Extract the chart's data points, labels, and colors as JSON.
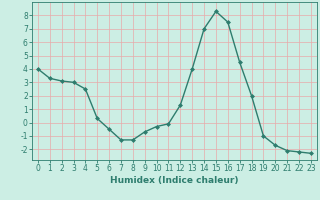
{
  "x": [
    0,
    1,
    2,
    3,
    4,
    5,
    6,
    7,
    8,
    9,
    10,
    11,
    12,
    13,
    14,
    15,
    16,
    17,
    18,
    19,
    20,
    21,
    22,
    23
  ],
  "y": [
    4.0,
    3.3,
    3.1,
    3.0,
    2.5,
    0.3,
    -0.5,
    -1.3,
    -1.3,
    -0.7,
    -0.3,
    -0.1,
    1.3,
    4.0,
    7.0,
    8.3,
    7.5,
    4.5,
    2.0,
    -1.0,
    -1.7,
    -2.1,
    -2.2,
    -2.3
  ],
  "line_color": "#2e7d6e",
  "marker": "D",
  "marker_size": 2,
  "xlabel": "Humidex (Indice chaleur)",
  "xlim": [
    -0.5,
    23.5
  ],
  "ylim": [
    -2.8,
    9.0
  ],
  "yticks": [
    -2,
    -1,
    0,
    1,
    2,
    3,
    4,
    5,
    6,
    7,
    8
  ],
  "xticks": [
    0,
    1,
    2,
    3,
    4,
    5,
    6,
    7,
    8,
    9,
    10,
    11,
    12,
    13,
    14,
    15,
    16,
    17,
    18,
    19,
    20,
    21,
    22,
    23
  ],
  "bg_color": "#cceee4",
  "grid_color": "#e8aaaa",
  "line_width": 1.0,
  "tick_fontsize": 5.5,
  "label_fontsize": 6.5
}
